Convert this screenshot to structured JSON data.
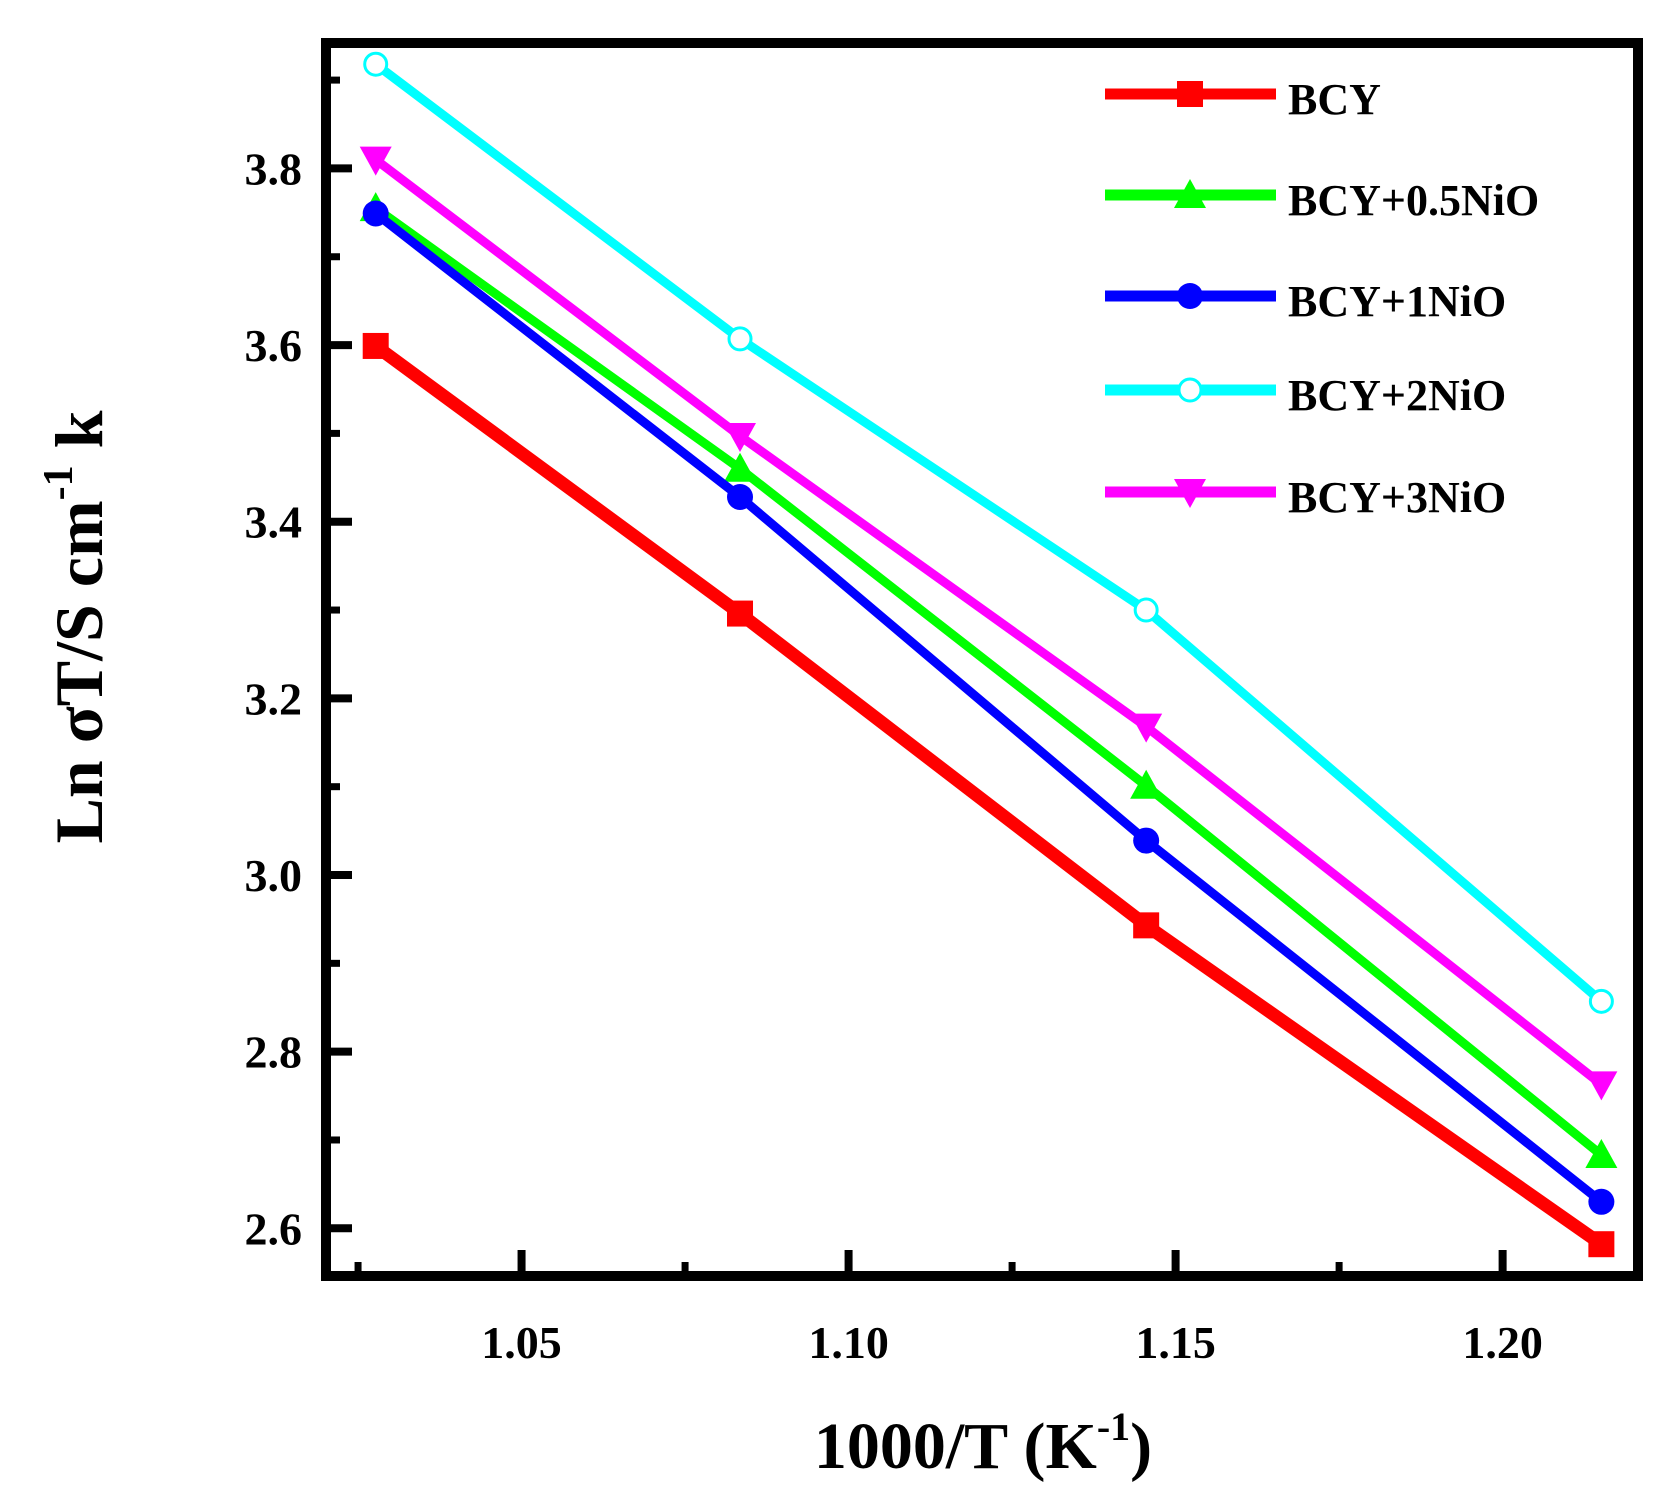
{
  "chart_data": {
    "type": "line",
    "title": "",
    "xlabel": "1000/T (K",
    "xlabel_sup": "-1",
    "xlabel_end": ")",
    "ylabel": "Ln σT/S cm",
    "ylabel_sup": "-1",
    "ylabel_end": " k",
    "xlim": [
      1.0201,
      1.2207
    ],
    "ylim": [
      2.546,
      3.942
    ],
    "xticks": [
      1.05,
      1.1,
      1.15,
      1.2
    ],
    "xtick_labels": [
      "1.05",
      "1.10",
      "1.15",
      "1.20"
    ],
    "yticks": [
      2.6,
      2.8,
      3.0,
      3.2,
      3.4,
      3.6,
      3.8
    ],
    "ytick_labels": [
      "2.6",
      "2.8",
      "3.0",
      "3.2",
      "3.4",
      "3.6",
      "3.8"
    ],
    "grid": false,
    "legend_position": "top-right",
    "x": [
      1.0277,
      1.0834,
      1.1455,
      1.2151
    ],
    "series": [
      {
        "name": "BCY",
        "color": "#ff0000",
        "marker": "square",
        "values": [
          3.599,
          3.296,
          2.943,
          2.582
        ]
      },
      {
        "name": "BCY+0.5NiO",
        "color": "#00ff00",
        "marker": "triangle-up",
        "values": [
          3.755,
          3.46,
          3.101,
          2.683
        ]
      },
      {
        "name": "BCY+1NiO",
        "color": "#0000ff",
        "marker": "circle",
        "values": [
          3.749,
          3.428,
          3.039,
          2.63
        ]
      },
      {
        "name": "BCY+2NiO",
        "color": "#00ffff",
        "marker": "circle-open",
        "values": [
          3.918,
          3.607,
          3.3,
          2.857
        ]
      },
      {
        "name": "BCY+3NiO",
        "color": "#ff00ff",
        "marker": "triangle-down",
        "values": [
          3.81,
          3.497,
          3.168,
          2.763
        ]
      }
    ]
  }
}
